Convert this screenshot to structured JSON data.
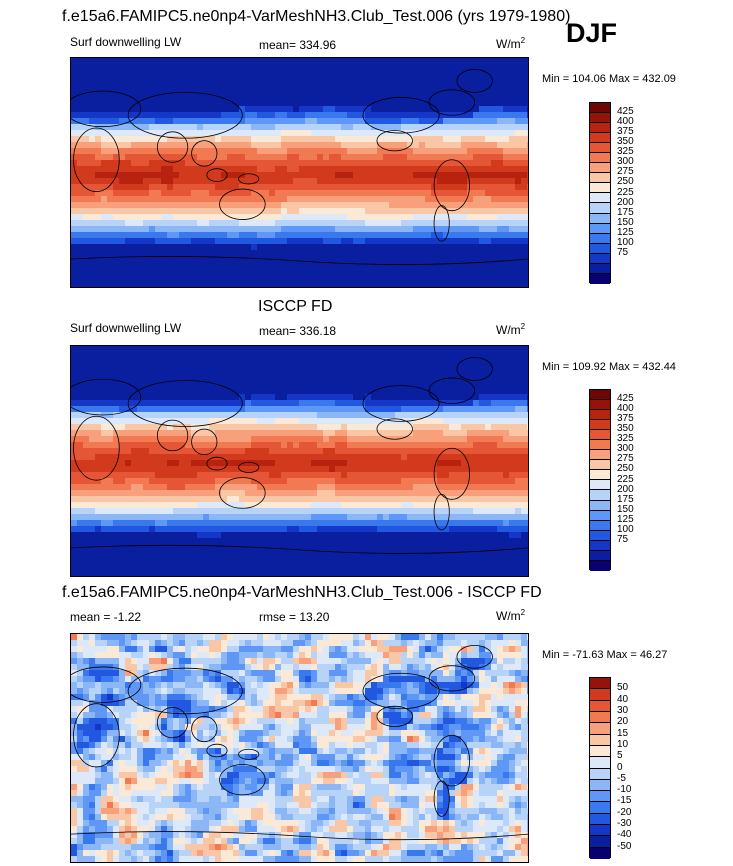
{
  "header": {
    "title": "f.e15a6.FAMIPC5.ne0np4-VarMeshNH3.Club_Test.006 (yrs 1979-1980)",
    "season": "DJF"
  },
  "colors": {
    "lw_scale": [
      "#08006e",
      "#0a1fa0",
      "#1537c8",
      "#2257e0",
      "#3a78ee",
      "#5e97f5",
      "#8cb7f7",
      "#b8d3f8",
      "#dde9f8",
      "#fbe9d8",
      "#f9c7a6",
      "#f7a07b",
      "#f17a52",
      "#e55636",
      "#d13a1c",
      "#b7230f",
      "#961309",
      "#6f0606"
    ],
    "diff_scale": [
      "#08006e",
      "#0a1fa0",
      "#1537c8",
      "#2257e0",
      "#3a78ee",
      "#5e97f5",
      "#8cb7f7",
      "#b8d3f8",
      "#dde9f8",
      "#fbe9d8",
      "#f9c7a6",
      "#f7a07b",
      "#f17a52",
      "#e55636",
      "#d13a1c",
      "#961309"
    ]
  },
  "panels": [
    {
      "subtitle": "",
      "left_label": "Surf downwelling LW",
      "mid_label": "mean= 334.96",
      "unit": "W/m",
      "unit_sup": "2",
      "minmax": "Min = 104.06 Max = 432.09",
      "levels": [
        "425",
        "400",
        "375",
        "350",
        "325",
        "300",
        "275",
        "250",
        "225",
        "200",
        "175",
        "150",
        "125",
        "100",
        "75"
      ],
      "kind": "model"
    },
    {
      "subtitle": "ISCCP FD",
      "left_label": "Surf downwelling LW",
      "mid_label": "mean= 336.18",
      "unit": "W/m",
      "unit_sup": "2",
      "minmax": "Min = 109.92 Max = 432.44",
      "levels": [
        "425",
        "400",
        "375",
        "350",
        "325",
        "300",
        "275",
        "250",
        "225",
        "200",
        "175",
        "150",
        "125",
        "100",
        "75"
      ],
      "kind": "obs"
    },
    {
      "subtitle": "f.e15a6.FAMIPC5.ne0np4-VarMeshNH3.Club_Test.006 - ISCCP FD",
      "left_label": "mean =  -1.22",
      "mid_label": "rmse =  13.20",
      "unit": "W/m",
      "unit_sup": "2",
      "minmax": "Min = -71.63 Max =  46.27",
      "levels": [
        "50",
        "40",
        "30",
        "20",
        "15",
        "10",
        "5",
        "0",
        "-5",
        "-10",
        "-15",
        "-20",
        "-30",
        "-40",
        "-50"
      ],
      "kind": "diff"
    }
  ],
  "chart_data": [
    {
      "type": "heatmap",
      "variable": "Surf downwelling LW",
      "units": "W/m2",
      "mean": 334.96,
      "min": 104.06,
      "max": 432.09,
      "contour_levels": [
        75,
        100,
        125,
        150,
        175,
        200,
        225,
        250,
        275,
        300,
        325,
        350,
        375,
        400,
        425
      ]
    },
    {
      "type": "heatmap",
      "variable": "Surf downwelling LW",
      "source": "ISCCP FD",
      "units": "W/m2",
      "mean": 336.18,
      "min": 109.92,
      "max": 432.44,
      "contour_levels": [
        75,
        100,
        125,
        150,
        175,
        200,
        225,
        250,
        275,
        300,
        325,
        350,
        375,
        400,
        425
      ]
    },
    {
      "type": "heatmap",
      "variable": "f.e15a6.FAMIPC5.ne0np4-VarMeshNH3.Club_Test.006 - ISCCP FD",
      "units": "W/m2",
      "mean": -1.22,
      "rmse": 13.2,
      "min": -71.63,
      "max": 46.27,
      "contour_levels": [
        -50,
        -40,
        -30,
        -20,
        -15,
        -10,
        -5,
        0,
        5,
        10,
        15,
        20,
        30,
        40,
        50
      ]
    }
  ]
}
